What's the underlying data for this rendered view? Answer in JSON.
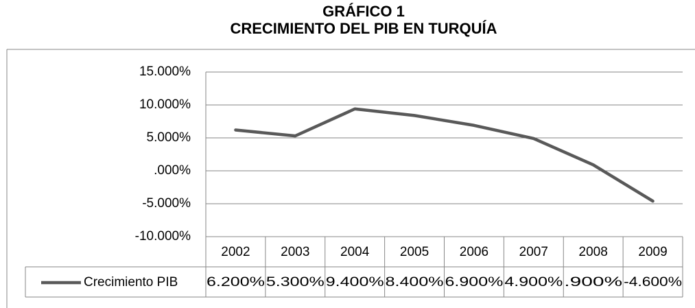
{
  "chart_data": {
    "type": "line",
    "title": "GRÁFICO 1",
    "subtitle": "CRECIMIENTO DEL PIB EN TURQUÍA",
    "categories": [
      "2002",
      "2003",
      "2004",
      "2005",
      "2006",
      "2007",
      "2008",
      "2009"
    ],
    "series": [
      {
        "name": "Crecimiento PIB",
        "color": "#595959",
        "values": [
          6.2,
          5.3,
          9.4,
          8.4,
          6.9,
          4.9,
          0.9,
          -4.6
        ],
        "value_labels": [
          "6.200%",
          "5.300%",
          "9.400%",
          "8.400%",
          "6.900%",
          "4.900%",
          ".900%",
          "-4.600%"
        ]
      }
    ],
    "ylim": [
      -10,
      15
    ],
    "yticks": [
      {
        "value": -10,
        "label": "-10.000%"
      },
      {
        "value": -5,
        "label": "-5.000%"
      },
      {
        "value": 0,
        "label": ".000%"
      },
      {
        "value": 5,
        "label": "5.000%"
      },
      {
        "value": 10,
        "label": "10.000%"
      },
      {
        "value": 15,
        "label": "15.000%"
      }
    ],
    "grid": true,
    "legend": "data-table"
  }
}
